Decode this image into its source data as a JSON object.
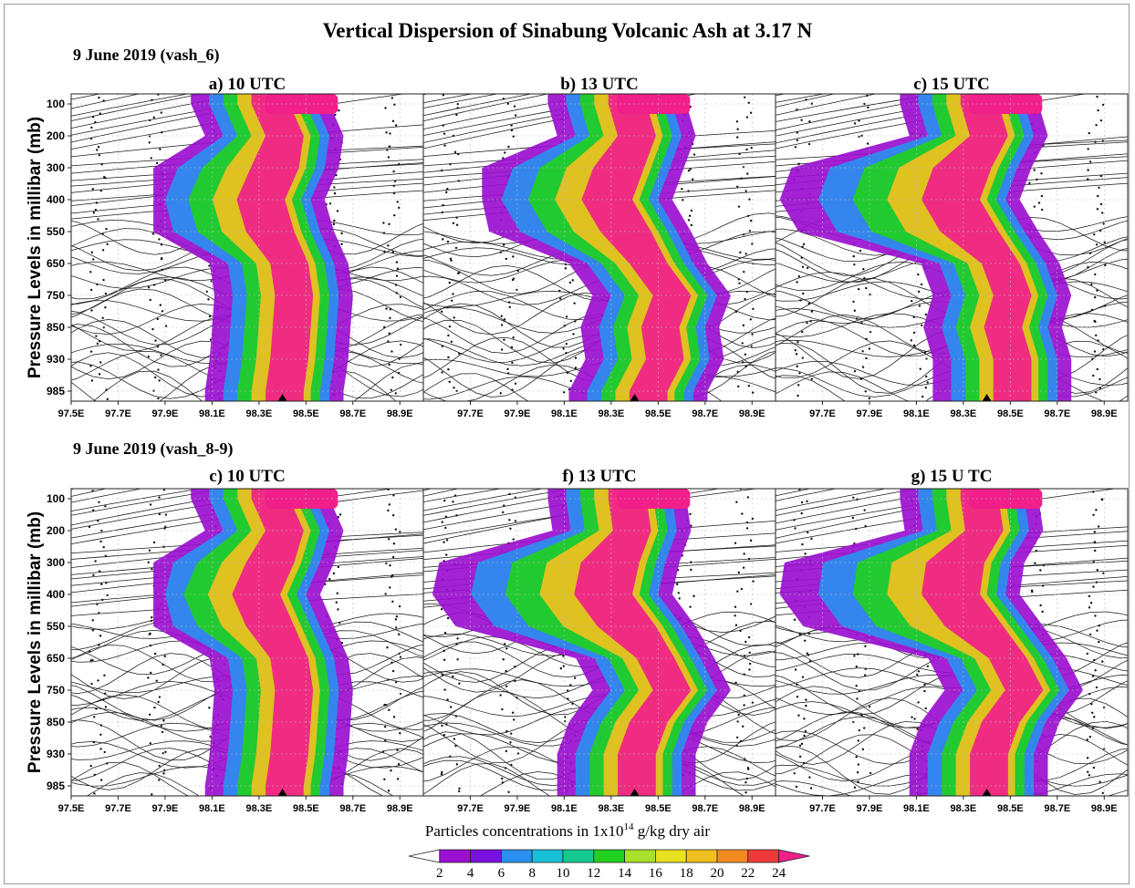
{
  "chart_data": {
    "type": "heatmap",
    "title": "Vertical Dispersion of Sinabung Volcanic Ash at 3.17 N",
    "ylabel": "Pressure Levels in millibar (mb)",
    "y_ticks": [
      "100",
      "200",
      "300",
      "400",
      "550",
      "650",
      "750",
      "850",
      "930",
      "985"
    ],
    "x_ticks_full": [
      "97.5E",
      "97.7E",
      "97.9E",
      "98.1E",
      "98.3E",
      "98.5E",
      "98.7E",
      "98.9E"
    ],
    "x_ticks_right": [
      "97.7E",
      "97.9E",
      "98.1E",
      "98.3E",
      "98.5E",
      "98.7E",
      "98.9E"
    ],
    "rows": [
      {
        "row_label": "9 June 2019 (vash_6)",
        "panels": [
          {
            "label": "a) 10 UTC",
            "plume_core": [
              [
                100,
                98.34
              ],
              [
                200,
                98.4
              ],
              [
                300,
                98.38
              ],
              [
                400,
                98.32
              ],
              [
                550,
                98.36
              ],
              [
                650,
                98.42
              ],
              [
                750,
                98.44
              ],
              [
                850,
                98.43
              ],
              [
                930,
                98.42
              ],
              [
                985,
                98.4
              ]
            ],
            "max_west_extent": 97.9
          },
          {
            "label": "b) 13 UTC",
            "plume_core": [
              [
                100,
                98.36
              ],
              [
                200,
                98.4
              ],
              [
                300,
                98.35
              ],
              [
                400,
                98.3
              ],
              [
                550,
                98.38
              ],
              [
                650,
                98.45
              ],
              [
                750,
                98.55
              ],
              [
                850,
                98.5
              ],
              [
                930,
                98.52
              ],
              [
                985,
                98.45
              ]
            ],
            "max_west_extent": 97.8
          },
          {
            "label": "c) 15 UTC",
            "plume_core": [
              [
                100,
                98.36
              ],
              [
                200,
                98.4
              ],
              [
                300,
                98.33
              ],
              [
                400,
                98.28
              ],
              [
                550,
                98.36
              ],
              [
                650,
                98.45
              ],
              [
                750,
                98.5
              ],
              [
                850,
                98.46
              ],
              [
                930,
                98.5
              ],
              [
                985,
                98.5
              ]
            ],
            "max_west_extent": 97.5
          }
        ]
      },
      {
        "row_label": "9 June 2019 (vash_8-9)",
        "panels": [
          {
            "label": "c) 10 UTC",
            "plume_core": [
              [
                100,
                98.34
              ],
              [
                200,
                98.4
              ],
              [
                300,
                98.36
              ],
              [
                400,
                98.3
              ],
              [
                550,
                98.36
              ],
              [
                650,
                98.42
              ],
              [
                750,
                98.44
              ],
              [
                850,
                98.43
              ],
              [
                930,
                98.42
              ],
              [
                985,
                98.4
              ]
            ],
            "max_west_extent": 97.9
          },
          {
            "label": "f) 13 UTC",
            "plume_core": [
              [
                100,
                98.36
              ],
              [
                200,
                98.38
              ],
              [
                300,
                98.33
              ],
              [
                400,
                98.3
              ],
              [
                550,
                98.4
              ],
              [
                650,
                98.48
              ],
              [
                750,
                98.55
              ],
              [
                850,
                98.45
              ],
              [
                930,
                98.4
              ],
              [
                985,
                98.4
              ]
            ],
            "max_west_extent": 97.5
          },
          {
            "label": "g) 15 U TC",
            "plume_core": [
              [
                100,
                98.36
              ],
              [
                200,
                98.38
              ],
              [
                300,
                98.3
              ],
              [
                400,
                98.28
              ],
              [
                550,
                98.38
              ],
              [
                650,
                98.48
              ],
              [
                750,
                98.55
              ],
              [
                850,
                98.45
              ],
              [
                930,
                98.4
              ],
              [
                985,
                98.4
              ]
            ],
            "max_west_extent": 97.5
          }
        ]
      }
    ],
    "colorbar": {
      "label_pre": "Particles concentrations in 1x10",
      "label_exp": "14",
      "label_post": " g/kg dry air",
      "ticks": [
        "2",
        "4",
        "6",
        "8",
        "10",
        "12",
        "14",
        "16",
        "18",
        "20",
        "22",
        "24"
      ],
      "colors": [
        "#ffffff",
        "#9a0fd0",
        "#7a10e0",
        "#2a8ff0",
        "#16c1d8",
        "#15c890",
        "#20d020",
        "#a8e02a",
        "#e8e020",
        "#f0c020",
        "#f08a20",
        "#f03a3a",
        "#f01f8a"
      ]
    },
    "grid": true,
    "vent_marker": "triangle at 98.4E"
  }
}
